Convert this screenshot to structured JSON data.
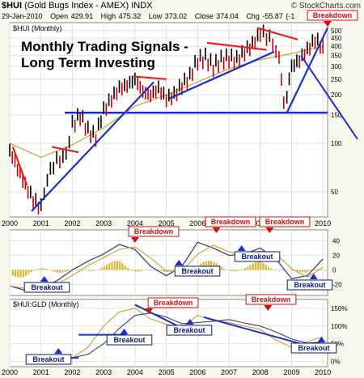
{
  "header": {
    "symbol": "$HUI",
    "name": "(Gold Bugs Index - AMEX)",
    "exchange": "INDX",
    "credit": "© StockCharts.com",
    "date": "29-Jan-2010",
    "open": "Open 429.91",
    "high": "High 475.32",
    "low": "Low 373.02",
    "close": "Close 374.04",
    "chg": "Chg -55.87 (-1"
  },
  "colors": {
    "price_bar": "#000000",
    "down_bar": "#cc0000",
    "moving_average": "#c8a840",
    "trendline": "#1830c8",
    "breakdown_line": "#e82020",
    "macd": "#404080",
    "histogram": "#d8b830",
    "breakout_box": "#0a1a7a",
    "breakdown_box": "#d01010",
    "panel_bg": "#ffffff",
    "chart_bg": "#f8f7ec"
  },
  "chart_data": [
    {
      "type": "line",
      "panel": "price",
      "title": "Monthly Trading Signals - Long Term Investing",
      "subtitle": "$HUI (Monthly)",
      "log_scale": true,
      "grid": true,
      "x_ticks": [
        "2000",
        "2001",
        "2002",
        "2003",
        "2004",
        "2005",
        "2006",
        "2007",
        "2008",
        "2009",
        "2010"
      ],
      "y_ticks": [
        50,
        100,
        150,
        200,
        250,
        300,
        350,
        400,
        450,
        500
      ],
      "ylim": [
        35,
        560
      ],
      "series": [
        {
          "x": [
            2000.0,
            2000.25,
            2000.5,
            2000.75,
            2001.0,
            2001.2,
            2001.4,
            2001.6,
            2001.8,
            2002.0,
            2002.25,
            2002.5,
            2002.75,
            2003.0,
            2003.25,
            2003.5,
            2003.75,
            2004.0,
            2004.25,
            2004.5,
            2004.75,
            2005.0,
            2005.25,
            2005.5,
            2005.75,
            2006.0,
            2006.25,
            2006.5,
            2006.75,
            2007.0,
            2007.25,
            2007.5,
            2007.75,
            2008.0,
            2008.2,
            2008.4,
            2008.6,
            2008.75,
            2008.85,
            2009.0,
            2009.25,
            2009.5,
            2009.75,
            2010.0
          ],
          "values": [
            90,
            70,
            55,
            45,
            40,
            60,
            75,
            80,
            85,
            130,
            150,
            120,
            110,
            160,
            190,
            220,
            230,
            250,
            210,
            200,
            220,
            190,
            200,
            230,
            260,
            330,
            340,
            300,
            330,
            340,
            330,
            370,
            410,
            480,
            470,
            420,
            330,
            180,
            200,
            300,
            330,
            380,
            440,
            400
          ]
        }
      ],
      "ma": {
        "x": [
          2000.0,
          2001.0,
          2002.0,
          2003.0,
          2004.0,
          2005.0,
          2006.0,
          2007.0,
          2008.0,
          2009.0,
          2010.0
        ],
        "values": [
          100,
          82,
          98,
          125,
          170,
          200,
          240,
          290,
          330,
          360,
          400
        ]
      },
      "level_line": 155,
      "annotations": [
        {
          "label": "Breakdown",
          "x": 2010.0,
          "y": 500
        }
      ],
      "trendlines": [
        {
          "kind": "support",
          "points": [
            [
              2000.7,
              38
            ],
            [
              2004.6,
              240
            ]
          ]
        },
        {
          "kind": "support",
          "points": [
            [
              2005.1,
              190
            ],
            [
              2008.45,
              370
            ]
          ]
        },
        {
          "kind": "support",
          "points": [
            [
              2008.85,
              155
            ],
            [
              2010.15,
              520
            ]
          ]
        },
        {
          "kind": "breakdown",
          "points": [
            [
              2000.1,
              95
            ],
            [
              2000.55,
              55
            ]
          ]
        },
        {
          "kind": "breakdown",
          "points": [
            [
              2001.35,
              95
            ],
            [
              2002.2,
              88
            ]
          ]
        },
        {
          "kind": "breakdown",
          "points": [
            [
              2003.95,
              260
            ],
            [
              2005.0,
              250
            ]
          ]
        },
        {
          "kind": "breakdown",
          "points": [
            [
              2006.3,
              420
            ],
            [
              2008.2,
              380
            ]
          ]
        },
        {
          "kind": "breakdown",
          "points": [
            [
              2007.9,
              520
            ],
            [
              2009.2,
              440
            ]
          ]
        }
      ]
    },
    {
      "type": "line",
      "panel": "macd",
      "x_ticks": [],
      "y_ticks": [
        40,
        20,
        0,
        -20
      ],
      "ylim": [
        -35,
        55
      ],
      "series": [
        {
          "name": "",
          "x": [
            2000.0,
            2000.5,
            2001.0,
            2001.5,
            2002.0,
            2002.5,
            2003.0,
            2003.5,
            2004.0,
            2004.5,
            2005.0,
            2005.5,
            2006.0,
            2006.5,
            2007.0,
            2007.5,
            2008.0,
            2008.5,
            2009.0,
            2009.5,
            2010.0
          ],
          "values": [
            -22,
            -28,
            -25,
            -15,
            0,
            12,
            22,
            35,
            28,
            5,
            -8,
            5,
            38,
            30,
            20,
            22,
            30,
            15,
            -12,
            -8,
            15
          ]
        }
      ],
      "annotations": [
        {
          "label": "Breakdown",
          "x": 2004.0
        },
        {
          "label": "Breakdown",
          "x": 2006.6
        },
        {
          "label": "Breakdown",
          "x": 2008.3
        },
        {
          "label": "Breakout",
          "x": 2001.0
        },
        {
          "label": "Breakout",
          "x": 2005.3
        },
        {
          "label": "Breakout",
          "x": 2007.3
        },
        {
          "label": "Breakout",
          "x": 2009.6
        }
      ]
    },
    {
      "type": "line",
      "panel": "ratio",
      "subtitle": "$HUI:GLD (Monthly)",
      "x_ticks": [
        "2000",
        "2001",
        "2002",
        "2003",
        "2004",
        "2005",
        "2006",
        "2007",
        "2008",
        "2009",
        "2010"
      ],
      "y_ticks": [
        150,
        100,
        50,
        0
      ],
      "y_suffix": "%",
      "ylim": [
        -15,
        175
      ],
      "series": [
        {
          "name": "",
          "x": [
            2002.0,
            2002.5,
            2003.0,
            2003.5,
            2004.0,
            2004.5,
            2005.0,
            2005.5,
            2006.0,
            2006.5,
            2007.0,
            2007.5,
            2008.0,
            2008.5,
            2009.0,
            2009.5,
            2010.0
          ],
          "values": [
            10,
            40,
            100,
            140,
            150,
            120,
            105,
            95,
            130,
            115,
            110,
            100,
            90,
            60,
            40,
            55,
            70
          ]
        }
      ],
      "annotations": [
        {
          "label": "Breakdown",
          "x": 2004.6
        },
        {
          "label": "Breakdown",
          "x": 2008.4
        },
        {
          "label": "Breakout",
          "x": 2001.4
        },
        {
          "label": "Breakout",
          "x": 2003.5
        },
        {
          "label": "Breakout",
          "x": 2005.6
        },
        {
          "label": "Breakout",
          "x": 2009.8
        }
      ]
    }
  ]
}
